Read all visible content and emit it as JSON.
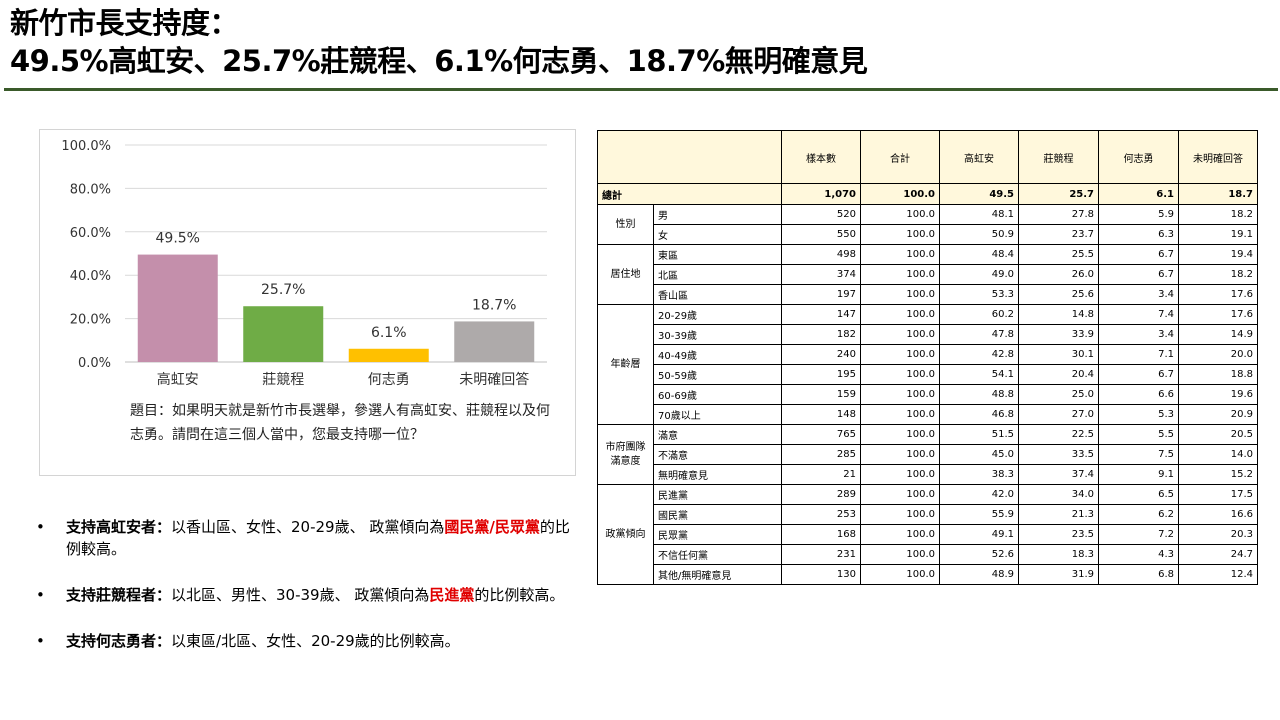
{
  "title": {
    "line1": "新竹市長支持度：",
    "line2": "49.5%高虹安、25.7%莊競程、6.1%何志勇、18.7%無明確意見"
  },
  "chart_data": {
    "type": "bar",
    "categories": [
      "高虹安",
      "莊競程",
      "何志勇",
      "未明確回答"
    ],
    "values": [
      49.5,
      25.7,
      6.1,
      18.7
    ],
    "data_labels": [
      "49.5%",
      "25.7%",
      "6.1%",
      "18.7%"
    ],
    "colors": [
      "#c48fab",
      "#6fac46",
      "#ffc000",
      "#aeaaaa"
    ],
    "ylim": [
      0,
      100
    ],
    "yticks": [
      "0.0%",
      "20.0%",
      "40.0%",
      "60.0%",
      "80.0%",
      "100.0%"
    ],
    "ytick_values": [
      0,
      20,
      40,
      60,
      80,
      100
    ],
    "grid": true,
    "note": "題目：如果明天就是新竹市長選舉，參選人有高虹安、莊競程以及何志勇。請問在這三個人當中，您最支持哪一位？"
  },
  "bullets": [
    {
      "head": "支持高虹安者：",
      "text": "以香山區、女性、20-29歲、 政黨傾向為",
      "highlight": "國民黨/民眾黨",
      "tail": "的比例較高。"
    },
    {
      "head": "支持莊競程者：",
      "text": "以北區、男性、30-39歲、 政黨傾向為",
      "highlight": "民進黨",
      "tail": "的比例較高。"
    },
    {
      "head": "支持何志勇者：",
      "text": "以東區/北區、女性、20-29歲的比例較高。",
      "highlight": "",
      "tail": ""
    }
  ],
  "table": {
    "headers": [
      "樣本數",
      "合計",
      "高虹安",
      "莊競程",
      "何志勇",
      "未明確回答"
    ],
    "total": {
      "label": "總計",
      "values": [
        "1,070",
        "100.0",
        "49.5",
        "25.7",
        "6.1",
        "18.7"
      ]
    },
    "groups": [
      {
        "name": "性別",
        "rows": [
          {
            "label": "男",
            "values": [
              "520",
              "100.0",
              "48.1",
              "27.8",
              "5.9",
              "18.2"
            ]
          },
          {
            "label": "女",
            "values": [
              "550",
              "100.0",
              "50.9",
              "23.7",
              "6.3",
              "19.1"
            ]
          }
        ]
      },
      {
        "name": "居住地",
        "rows": [
          {
            "label": "東區",
            "values": [
              "498",
              "100.0",
              "48.4",
              "25.5",
              "6.7",
              "19.4"
            ]
          },
          {
            "label": "北區",
            "values": [
              "374",
              "100.0",
              "49.0",
              "26.0",
              "6.7",
              "18.2"
            ]
          },
          {
            "label": "香山區",
            "values": [
              "197",
              "100.0",
              "53.3",
              "25.6",
              "3.4",
              "17.6"
            ]
          }
        ]
      },
      {
        "name": "年齡層",
        "rows": [
          {
            "label": "20-29歲",
            "values": [
              "147",
              "100.0",
              "60.2",
              "14.8",
              "7.4",
              "17.6"
            ]
          },
          {
            "label": "30-39歲",
            "values": [
              "182",
              "100.0",
              "47.8",
              "33.9",
              "3.4",
              "14.9"
            ]
          },
          {
            "label": "40-49歲",
            "values": [
              "240",
              "100.0",
              "42.8",
              "30.1",
              "7.1",
              "20.0"
            ]
          },
          {
            "label": "50-59歲",
            "values": [
              "195",
              "100.0",
              "54.1",
              "20.4",
              "6.7",
              "18.8"
            ]
          },
          {
            "label": "60-69歲",
            "values": [
              "159",
              "100.0",
              "48.8",
              "25.0",
              "6.6",
              "19.6"
            ]
          },
          {
            "label": "70歲以上",
            "values": [
              "148",
              "100.0",
              "46.8",
              "27.0",
              "5.3",
              "20.9"
            ]
          }
        ]
      },
      {
        "name": "市府團隊滿意度",
        "rows": [
          {
            "label": "滿意",
            "values": [
              "765",
              "100.0",
              "51.5",
              "22.5",
              "5.5",
              "20.5"
            ]
          },
          {
            "label": "不滿意",
            "values": [
              "285",
              "100.0",
              "45.0",
              "33.5",
              "7.5",
              "14.0"
            ]
          },
          {
            "label": "無明確意見",
            "values": [
              "21",
              "100.0",
              "38.3",
              "37.4",
              "9.1",
              "15.2"
            ]
          }
        ]
      },
      {
        "name": "政黨傾向",
        "rows": [
          {
            "label": "民進黨",
            "values": [
              "289",
              "100.0",
              "42.0",
              "34.0",
              "6.5",
              "17.5"
            ]
          },
          {
            "label": "國民黨",
            "values": [
              "253",
              "100.0",
              "55.9",
              "21.3",
              "6.2",
              "16.6"
            ]
          },
          {
            "label": "民眾黨",
            "values": [
              "168",
              "100.0",
              "49.1",
              "23.5",
              "7.2",
              "20.3"
            ]
          },
          {
            "label": "不信任何黨",
            "values": [
              "231",
              "100.0",
              "52.6",
              "18.3",
              "4.3",
              "24.7"
            ]
          },
          {
            "label": "其他/無明確意見",
            "values": [
              "130",
              "100.0",
              "48.9",
              "31.9",
              "6.8",
              "12.4"
            ]
          }
        ]
      }
    ]
  }
}
